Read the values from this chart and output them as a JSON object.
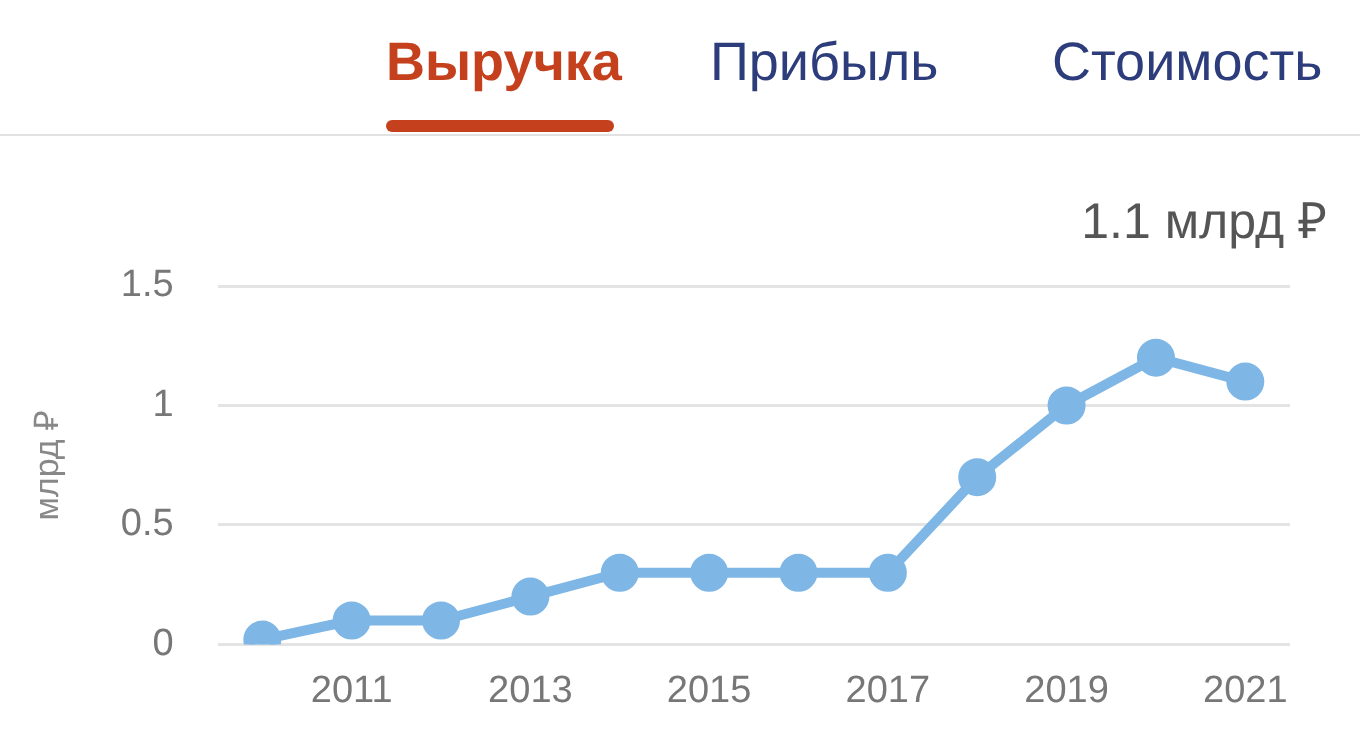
{
  "chart_data": {
    "type": "line",
    "ylabel": "млрд ₽",
    "annotations": [
      "Выручка",
      "Прибыль",
      "Стоимость",
      "1.1 млрд ₽"
    ],
    "categories": [
      null,
      "2011",
      null,
      "2013",
      null,
      "2015",
      null,
      "2017",
      null,
      "2019",
      null,
      "2021"
    ],
    "series": [
      {
        "color": "#7eb6e6",
        "values": [
          0.02,
          0.1,
          0.1,
          0.2,
          0.3,
          0.3,
          0.3,
          0.3,
          0.7,
          1.0,
          1.2,
          1.1
        ]
      }
    ],
    "ylim": [
      0,
      1.5
    ],
    "yticks": [
      0,
      0.5,
      1,
      1.5
    ],
    "grid": "y",
    "legend": false,
    "marker": "circle",
    "line_style": "solid"
  }
}
